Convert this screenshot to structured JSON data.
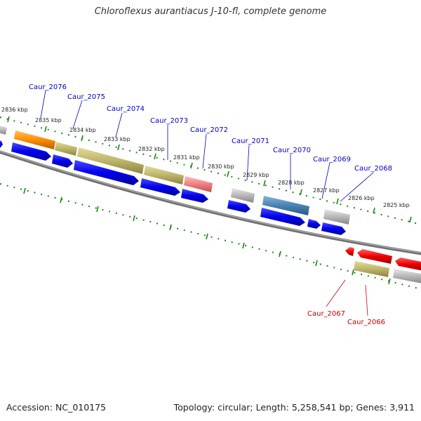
{
  "title": "Chloroflexus aurantiacus J-10-fl, complete genome",
  "accession_text": "Accession: NC_010175",
  "topology_text": "Topology: circular; Length: 5,258,541 bp; Genes: 3,911",
  "colors": {
    "forward_label": "#0000cc",
    "reverse_label": "#cc0000",
    "tick": "#1a8a1a",
    "backbone": "#808080"
  },
  "kbp_labels": [
    "2836 kbp",
    "2835 kbp",
    "2834 kbp",
    "2833 kbp",
    "2832 kbp",
    "2831 kbp",
    "2830 kbp",
    "2829 kbp",
    "2828 kbp",
    "2827 kbp",
    "2826 kbp",
    "2825 kbp"
  ],
  "gene_labels": {
    "forward": [
      "Caur_2076",
      "Caur_2075",
      "Caur_2074",
      "Caur_2073",
      "Caur_2072",
      "Caur_2071",
      "Caur_2070",
      "Caur_2069",
      "Caur_2068"
    ],
    "reverse": [
      "Caur_2067",
      "Caur_2066"
    ]
  }
}
